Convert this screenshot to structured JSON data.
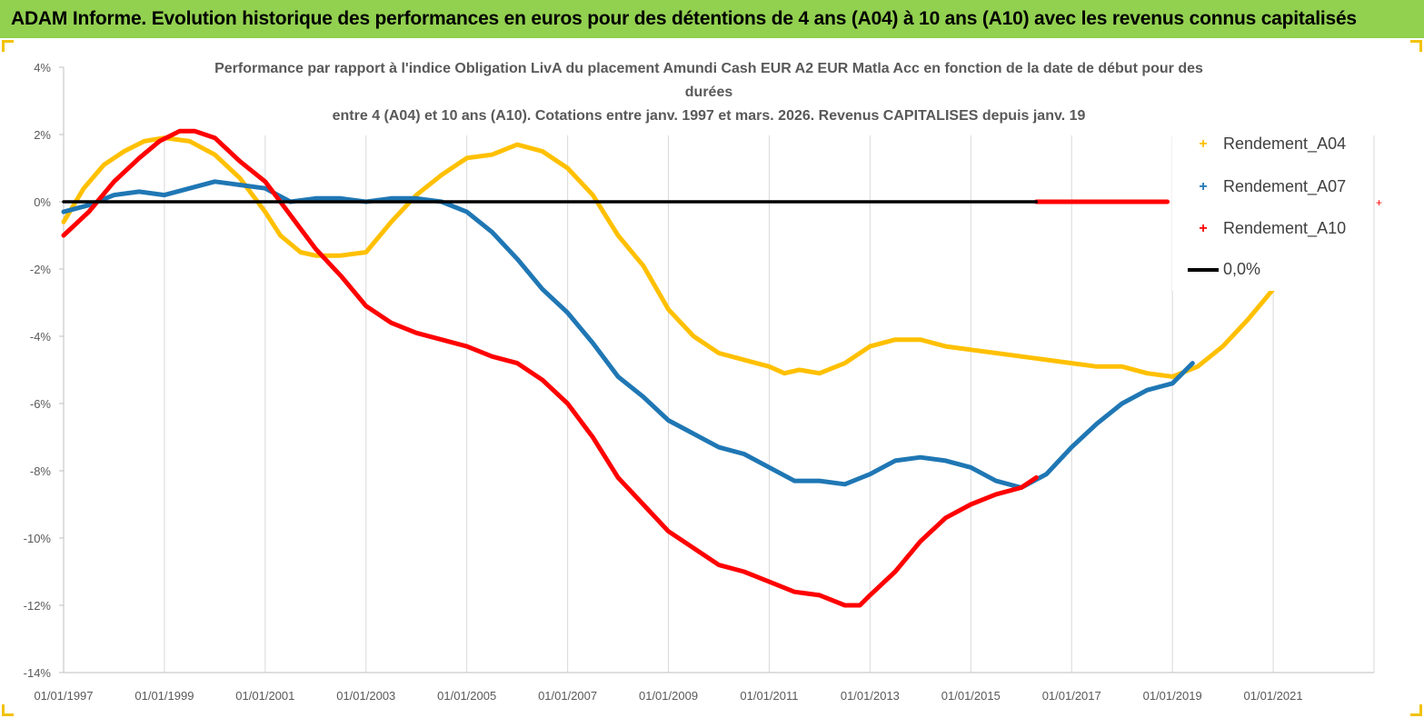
{
  "banner": {
    "title": "ADAM Informe. Evolution historique des performances en euros pour des détentions de 4 ans (A04) à 10 ans (A10) avec les revenus connus capitalisés"
  },
  "chart_data": {
    "type": "line",
    "title_lines": [
      "Performance par rapport à l'indice Obligation LivA  du placement Amundi Cash EUR A2 EUR Matla Acc en fonction de la date de début pour des",
      "durées",
      "entre 4 (A04) et 10 ans (A10).  Cotations entre janv. 1997 et mars. 2026. Revenus CAPITALISES depuis janv. 19"
    ],
    "x_tick_labels": [
      "01/01/1997",
      "01/01/1999",
      "01/01/2001",
      "01/01/2003",
      "01/01/2005",
      "01/01/2007",
      "01/01/2009",
      "01/01/2011",
      "01/01/2013",
      "01/01/2015",
      "01/01/2017",
      "01/01/2019",
      "01/01/2021"
    ],
    "y_tick_labels": [
      "4%",
      "2%",
      "0%",
      "-2%",
      "-4%",
      "-6%",
      "-8%",
      "-10%",
      "-12%",
      "-14%"
    ],
    "xlim": [
      1997.0,
      2023.0
    ],
    "ylim": [
      -14,
      4
    ],
    "grid": "vertical",
    "legend_position": "right",
    "series": [
      {
        "name": "Rendement_A04",
        "color": "#ffc000",
        "x": [
          1997.0,
          1997.4,
          1997.8,
          1998.2,
          1998.6,
          1999.0,
          1999.5,
          2000.0,
          2000.5,
          2001.0,
          2001.3,
          2001.7,
          2002.0,
          2002.5,
          2003.0,
          2003.5,
          2004.0,
          2004.5,
          2005.0,
          2005.5,
          2006.0,
          2006.5,
          2007.0,
          2007.5,
          2008.0,
          2008.5,
          2009.0,
          2009.5,
          2010.0,
          2010.5,
          2011.0,
          2011.3,
          2011.6,
          2012.0,
          2012.5,
          2013.0,
          2013.5,
          2014.0,
          2014.5,
          2015.0,
          2015.5,
          2016.0,
          2016.5,
          2017.0,
          2017.5,
          2018.0,
          2018.5,
          2019.0,
          2019.5,
          2020.0,
          2020.5,
          2021.0
        ],
        "values": [
          -0.6,
          0.4,
          1.1,
          1.5,
          1.8,
          1.9,
          1.8,
          1.4,
          0.7,
          -0.3,
          -1.0,
          -1.5,
          -1.6,
          -1.6,
          -1.5,
          -0.6,
          0.2,
          0.8,
          1.3,
          1.4,
          1.7,
          1.5,
          1.0,
          0.2,
          -1.0,
          -1.9,
          -3.2,
          -4.0,
          -4.5,
          -4.7,
          -4.9,
          -5.1,
          -5.0,
          -5.1,
          -4.8,
          -4.3,
          -4.1,
          -4.1,
          -4.3,
          -4.4,
          -4.5,
          -4.6,
          -4.7,
          -4.8,
          -4.9,
          -4.9,
          -5.1,
          -5.2,
          -4.9,
          -4.3,
          -3.5,
          -2.6
        ]
      },
      {
        "name": "Rendement_A07",
        "color": "#1f77b4",
        "x": [
          1997.0,
          1997.5,
          1998.0,
          1998.5,
          1999.0,
          1999.5,
          2000.0,
          2000.5,
          2001.0,
          2001.5,
          2002.0,
          2002.5,
          2003.0,
          2003.5,
          2004.0,
          2004.5,
          2005.0,
          2005.5,
          2006.0,
          2006.5,
          2007.0,
          2007.5,
          2008.0,
          2008.5,
          2009.0,
          2009.5,
          2010.0,
          2010.5,
          2011.0,
          2011.5,
          2012.0,
          2012.5,
          2013.0,
          2013.5,
          2014.0,
          2014.5,
          2015.0,
          2015.5,
          2016.0,
          2016.5,
          2017.0,
          2017.5,
          2018.0,
          2018.5,
          2019.0,
          2019.4
        ],
        "values": [
          -0.3,
          -0.1,
          0.2,
          0.3,
          0.2,
          0.4,
          0.6,
          0.5,
          0.4,
          0.0,
          0.1,
          0.1,
          0.0,
          0.1,
          0.1,
          0.0,
          -0.3,
          -0.9,
          -1.7,
          -2.6,
          -3.3,
          -4.2,
          -5.2,
          -5.8,
          -6.5,
          -6.9,
          -7.3,
          -7.5,
          -7.9,
          -8.3,
          -8.3,
          -8.4,
          -8.1,
          -7.7,
          -7.6,
          -7.7,
          -7.9,
          -8.3,
          -8.5,
          -8.1,
          -7.3,
          -6.6,
          -6.0,
          -5.6,
          -5.4,
          -4.8
        ]
      },
      {
        "name": "Rendement_A10",
        "color": "#ff0000",
        "x": [
          1997.0,
          1997.5,
          1998.0,
          1998.5,
          1998.9,
          1999.3,
          1999.6,
          2000.0,
          2000.5,
          2001.0,
          2001.5,
          2002.0,
          2002.5,
          2003.0,
          2003.5,
          2004.0,
          2004.5,
          2005.0,
          2005.5,
          2006.0,
          2006.5,
          2007.0,
          2007.5,
          2008.0,
          2008.5,
          2009.0,
          2009.5,
          2010.0,
          2010.5,
          2011.0,
          2011.5,
          2012.0,
          2012.5,
          2012.8,
          2013.0,
          2013.5,
          2014.0,
          2014.5,
          2015.0,
          2015.5,
          2016.0,
          2016.3
        ],
        "values": [
          -1.0,
          -0.3,
          0.6,
          1.3,
          1.8,
          2.1,
          2.1,
          1.9,
          1.2,
          0.6,
          -0.4,
          -1.4,
          -2.2,
          -3.1,
          -3.6,
          -3.9,
          -4.1,
          -4.3,
          -4.6,
          -4.8,
          -5.3,
          -6.0,
          -7.0,
          -8.2,
          -9.0,
          -9.8,
          -10.3,
          -10.8,
          -11.0,
          -11.3,
          -11.6,
          -11.7,
          -12.0,
          -12.0,
          -11.7,
          -11.0,
          -10.1,
          -9.4,
          -9.0,
          -8.7,
          -8.5,
          -8.2
        ]
      },
      {
        "name": "Rendement_A10",
        "segment": "flat",
        "color": "#ff0000",
        "x": [
          2016.3,
          2018.9
        ],
        "values": [
          0.0,
          0.0
        ]
      },
      {
        "name": "0,0%",
        "color": "#000000",
        "x": [
          1997.0,
          2016.3
        ],
        "values": [
          0.0,
          0.0
        ]
      }
    ]
  },
  "legend": {
    "items": [
      {
        "label": "Rendement_A04",
        "color": "#ffc000",
        "symbol": "+"
      },
      {
        "label": "Rendement_A07",
        "color": "#1f77b4",
        "symbol": "+"
      },
      {
        "label": "Rendement_A10",
        "color": "#ff0000",
        "symbol": "+"
      },
      {
        "label": "0,0%",
        "color": "#000000",
        "symbol": "line"
      }
    ]
  }
}
